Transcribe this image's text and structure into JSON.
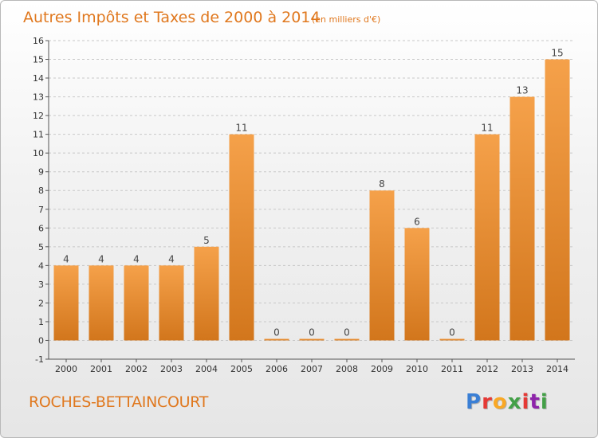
{
  "header": {
    "title": "Autres Impôts et Taxes de 2000 à 2014",
    "unit": "(en milliers d'€)"
  },
  "footer": {
    "commune": "ROCHES-BETTAINCOURT",
    "brand": "Proxiti",
    "brand_colors": [
      "#3a7fd5",
      "#e53935",
      "#f9a825",
      "#43a047",
      "#e53935",
      "#8e24aa",
      "#43a047"
    ]
  },
  "colors": {
    "bar_light": "#f5a14a",
    "bar_dark": "#d2761c",
    "title": "#e0781e",
    "grid": "#c8c8c8"
  },
  "chart_data": {
    "type": "bar",
    "title": "Autres Impôts et Taxes de 2000 à 2014",
    "subtitle": "(en milliers d'€)",
    "categories": [
      "2000",
      "2001",
      "2002",
      "2003",
      "2004",
      "2005",
      "2006",
      "2007",
      "2008",
      "2009",
      "2010",
      "2011",
      "2012",
      "2013",
      "2014"
    ],
    "values": [
      4,
      4,
      4,
      4,
      5,
      11,
      0,
      0,
      0,
      8,
      6,
      0,
      11,
      13,
      15
    ],
    "data_labels": [
      "4",
      "4",
      "4",
      "4",
      "5",
      "11",
      "0",
      "0",
      "0",
      "8",
      "6",
      "0",
      "11",
      "13",
      "15"
    ],
    "yticks": [
      "-1",
      "0",
      "1",
      "2",
      "3",
      "4",
      "5",
      "6",
      "7",
      "8",
      "9",
      "10",
      "11",
      "12",
      "13",
      "14",
      "15",
      "16"
    ],
    "ylim": [
      -1,
      16
    ],
    "xlabel": "",
    "ylabel": "",
    "grid": true
  }
}
